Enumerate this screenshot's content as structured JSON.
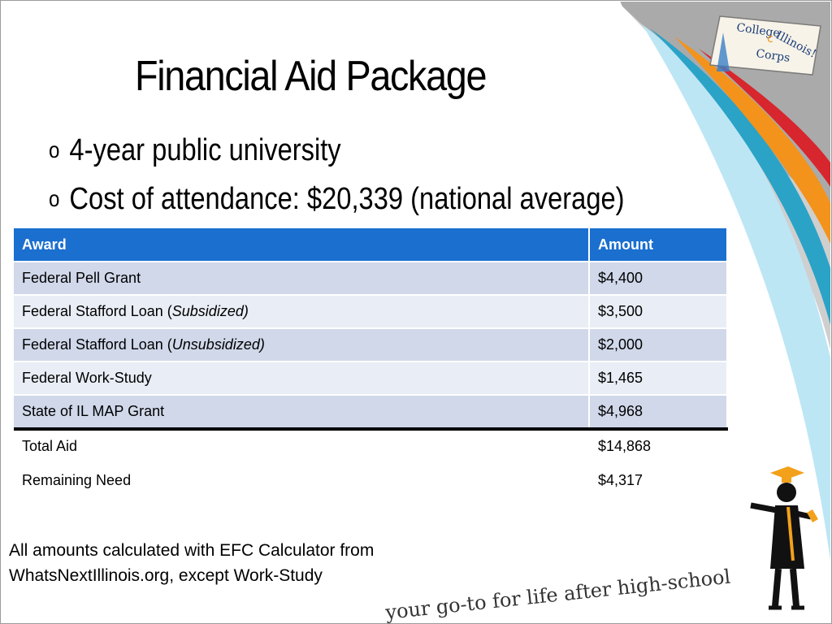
{
  "slide": {
    "title": "Financial Aid Package",
    "bullets": [
      "4-year public university",
      "Cost of attendance: $20,339 (national average)"
    ],
    "bullet_symbol": "o"
  },
  "table": {
    "headers": [
      "Award",
      "Amount"
    ],
    "rows": [
      {
        "award": "Federal Pell Grant",
        "award_note": "",
        "amount": "$4,400"
      },
      {
        "award": "Federal Stafford Loan (",
        "award_note": "Subsidized)",
        "amount": "$3,500"
      },
      {
        "award": "Federal Stafford Loan (",
        "award_note": "Unsubsidized)",
        "amount": "$2,000"
      },
      {
        "award": "Federal Work-Study",
        "award_note": "",
        "amount": "$1,465"
      },
      {
        "award": "State of IL MAP Grant",
        "award_note": "",
        "amount": "$4,968"
      }
    ],
    "total": {
      "label": "Total Aid",
      "amount": "$14,868"
    },
    "remaining": {
      "label": "Remaining Need",
      "amount": "$4,317"
    }
  },
  "footnote": {
    "line1": "All amounts calculated with EFC Calculator from",
    "line2": "WhatsNextIllinois.org, except Work-Study"
  },
  "branding": {
    "logo_line1": "College",
    "logo_line2": "Illinois!",
    "logo_line3": "Corps",
    "tagline": "your go-to for life after high-school"
  },
  "colors": {
    "header_blue": "#1a6fcf",
    "row_band": "#d0d8ea",
    "row_light": "#e9edf5",
    "swoosh_red": "#d7262d",
    "swoosh_orange": "#f3931b",
    "swoosh_teal": "#2aa3c7",
    "swoosh_light": "#bde6f5"
  }
}
